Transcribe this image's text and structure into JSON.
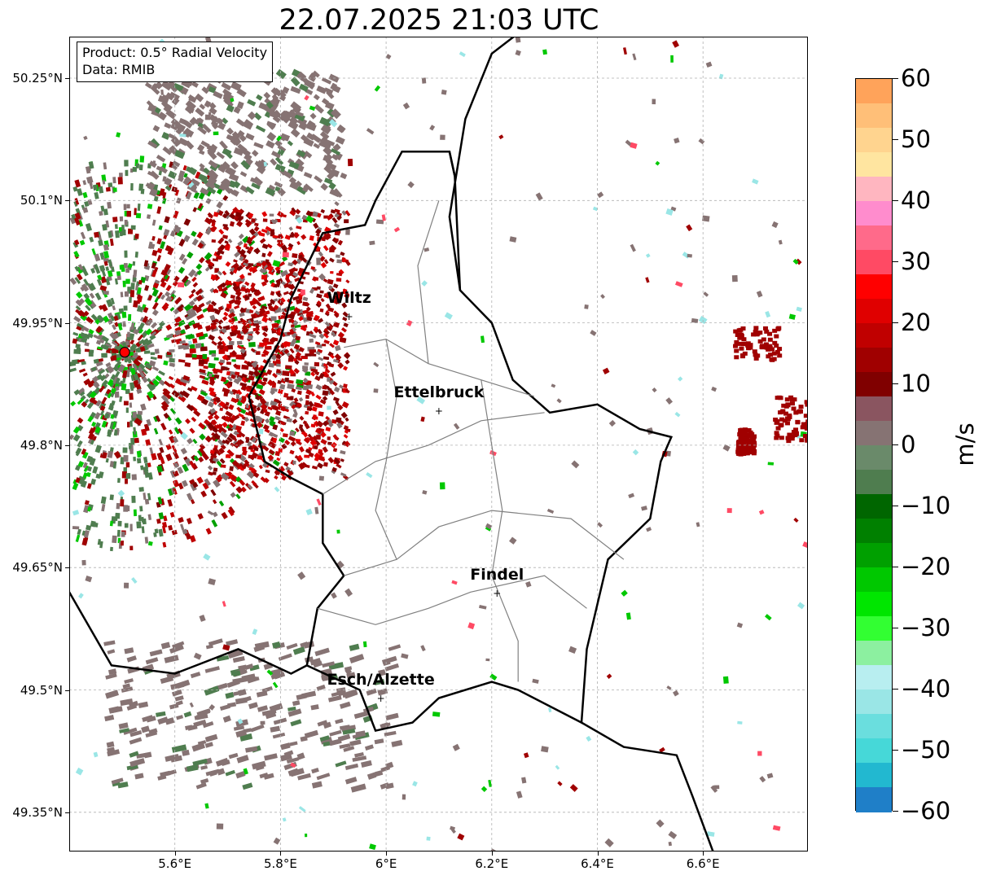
{
  "title": "22.07.2025 21:03 UTC",
  "info": {
    "product": "Product: 0.5° Radial Velocity",
    "data": "Data: RMIB"
  },
  "map": {
    "lon_range": [
      5.4,
      6.8
    ],
    "lat_range": [
      49.3,
      50.3
    ],
    "lat_ticks": [
      {
        "value": 50.25,
        "label": "50.25°N"
      },
      {
        "value": 50.1,
        "label": "50.1°N"
      },
      {
        "value": 49.95,
        "label": "49.95°N"
      },
      {
        "value": 49.8,
        "label": "49.8°N"
      },
      {
        "value": 49.65,
        "label": "49.65°N"
      },
      {
        "value": 49.5,
        "label": "49.5°N"
      },
      {
        "value": 49.35,
        "label": "49.35°N"
      }
    ],
    "lon_ticks": [
      {
        "value": 5.6,
        "label": "5.6°E"
      },
      {
        "value": 5.8,
        "label": "5.8°E"
      },
      {
        "value": 6.0,
        "label": "6°E"
      },
      {
        "value": 6.2,
        "label": "6.2°E"
      },
      {
        "value": 6.4,
        "label": "6.4°E"
      },
      {
        "value": 6.6,
        "label": "6.6°E"
      }
    ],
    "grid": true,
    "radar_site": {
      "lon": 5.505,
      "lat": 49.914
    },
    "cities": [
      {
        "name": "Wiltz",
        "lon": 5.93,
        "lat": 49.966
      },
      {
        "name": "Ettelbruck",
        "lon": 6.1,
        "lat": 49.85
      },
      {
        "name": "Findel",
        "lon": 6.21,
        "lat": 49.626
      },
      {
        "name": "Esch/Alzette",
        "lon": 5.99,
        "lat": 49.498
      }
    ]
  },
  "colorbar": {
    "label": "m/s",
    "min": -60,
    "max": 60,
    "ticks": [
      {
        "value": 60,
        "label": "60"
      },
      {
        "value": 50,
        "label": "50"
      },
      {
        "value": 40,
        "label": "40"
      },
      {
        "value": 30,
        "label": "30"
      },
      {
        "value": 20,
        "label": "20"
      },
      {
        "value": 10,
        "label": "10"
      },
      {
        "value": 0,
        "label": "0"
      },
      {
        "value": -10,
        "label": "−10"
      },
      {
        "value": -20,
        "label": "−20"
      },
      {
        "value": -30,
        "label": "−30"
      },
      {
        "value": -40,
        "label": "−40"
      },
      {
        "value": -50,
        "label": "−50"
      },
      {
        "value": -60,
        "label": "−60"
      }
    ],
    "stops": [
      {
        "from": 56,
        "to": 60,
        "color": "#ffa35a"
      },
      {
        "from": 52,
        "to": 56,
        "color": "#ffbf78"
      },
      {
        "from": 48,
        "to": 52,
        "color": "#ffd48f"
      },
      {
        "from": 44,
        "to": 48,
        "color": "#ffe5a0"
      },
      {
        "from": 40,
        "to": 44,
        "color": "#ffb6c0"
      },
      {
        "from": 36,
        "to": 40,
        "color": "#ff8ccd"
      },
      {
        "from": 32,
        "to": 36,
        "color": "#ff6a8a"
      },
      {
        "from": 28,
        "to": 32,
        "color": "#ff4a64"
      },
      {
        "from": 24,
        "to": 28,
        "color": "#ff0000"
      },
      {
        "from": 20,
        "to": 24,
        "color": "#e00000"
      },
      {
        "from": 16,
        "to": 20,
        "color": "#c00000"
      },
      {
        "from": 12,
        "to": 16,
        "color": "#a00000"
      },
      {
        "from": 8,
        "to": 12,
        "color": "#800000"
      },
      {
        "from": 4,
        "to": 8,
        "color": "#8a5560"
      },
      {
        "from": 0,
        "to": 4,
        "color": "#867373"
      },
      {
        "from": -4,
        "to": 0,
        "color": "#6a8a6a"
      },
      {
        "from": -8,
        "to": -4,
        "color": "#4f7d4f"
      },
      {
        "from": -12,
        "to": -8,
        "color": "#006600"
      },
      {
        "from": -16,
        "to": -12,
        "color": "#008000"
      },
      {
        "from": -20,
        "to": -16,
        "color": "#00a000"
      },
      {
        "from": -24,
        "to": -20,
        "color": "#00c800"
      },
      {
        "from": -28,
        "to": -24,
        "color": "#00e600"
      },
      {
        "from": -32,
        "to": -28,
        "color": "#32ff32"
      },
      {
        "from": -36,
        "to": -32,
        "color": "#8cf0a0"
      },
      {
        "from": -40,
        "to": -36,
        "color": "#b8eef0"
      },
      {
        "from": -44,
        "to": -40,
        "color": "#9ae6e6"
      },
      {
        "from": -48,
        "to": -44,
        "color": "#6adede"
      },
      {
        "from": -52,
        "to": -48,
        "color": "#46d8d8"
      },
      {
        "from": -56,
        "to": -52,
        "color": "#22b8d0"
      },
      {
        "from": -60,
        "to": -56,
        "color": "#1f7fc8"
      }
    ]
  },
  "colors": {
    "positive_strong": "#800000",
    "near_zero": "#867373",
    "negative": "#00c800",
    "border": "#000000",
    "canton": "#808080",
    "radar_dot": "#ff0000"
  }
}
